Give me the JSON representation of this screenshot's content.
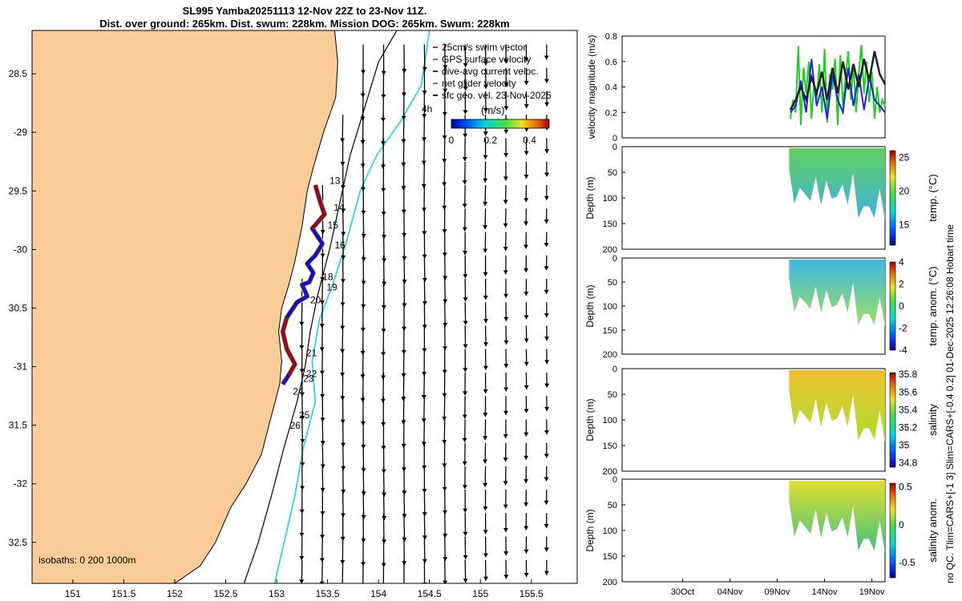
{
  "title": {
    "line1": "SL995 Yamba20251113 12-Nov 22Z to 23-Nov 11Z.",
    "line2": "Dist. over ground: 265km. Dist. swum: 228km. Mission DOG: 265km. Swum: 228km"
  },
  "side_label": "no QC. Tlim=CARS+[-1 3] Slim=CARS+[-0.4 0.2] 01-Dec-2025 12:26:08 Hobart time",
  "colors": {
    "land": "#fbcb98",
    "track": "#1010d0",
    "isobath_cyan": "#30d8d8",
    "warm": "#c00000"
  },
  "chart_data": [
    {
      "name": "map",
      "type": "scatter",
      "xlim": [
        150.6,
        155.95
      ],
      "ylim": [
        -32.85,
        -28.13
      ],
      "xticks": [
        151,
        151.5,
        152,
        152.5,
        153,
        153.5,
        154,
        154.5,
        155,
        155.5
      ],
      "xtick_labels": [
        "151",
        "151.5",
        "152",
        "152.5",
        "153",
        "153.5",
        "154",
        "154.5",
        "155",
        "155.5"
      ],
      "yticks": [
        -28.5,
        -29,
        -29.5,
        -30,
        -30.5,
        -31,
        -31.5,
        -32,
        -32.5
      ],
      "ytick_labels": [
        "28.5",
        "-29",
        "29.5",
        "-30",
        "30.5",
        "-31",
        "31.5",
        "-32",
        "32.5"
      ],
      "coastline": [
        [
          153.57,
          -28.13
        ],
        [
          153.6,
          -28.4
        ],
        [
          153.58,
          -28.7
        ],
        [
          153.46,
          -29.0
        ],
        [
          153.36,
          -29.3
        ],
        [
          153.3,
          -29.5
        ],
        [
          153.25,
          -29.8
        ],
        [
          153.18,
          -30.1
        ],
        [
          153.12,
          -30.3
        ],
        [
          153.05,
          -30.5
        ],
        [
          153.02,
          -30.7
        ],
        [
          153.05,
          -30.95
        ],
        [
          153.03,
          -31.15
        ],
        [
          152.94,
          -31.45
        ],
        [
          152.85,
          -31.75
        ],
        [
          152.7,
          -32.0
        ],
        [
          152.55,
          -32.2
        ],
        [
          152.4,
          -32.5
        ],
        [
          152.25,
          -32.7
        ],
        [
          152.0,
          -32.85
        ]
      ],
      "isobath_200": [
        [
          154.18,
          -28.13
        ],
        [
          154.0,
          -28.4
        ],
        [
          153.86,
          -28.8
        ],
        [
          153.72,
          -29.2
        ],
        [
          153.62,
          -29.6
        ],
        [
          153.52,
          -30.0
        ],
        [
          153.4,
          -30.4
        ],
        [
          153.33,
          -30.7
        ],
        [
          153.28,
          -31.0
        ],
        [
          153.2,
          -31.3
        ],
        [
          153.07,
          -31.7
        ],
        [
          152.95,
          -32.1
        ],
        [
          152.82,
          -32.5
        ],
        [
          152.68,
          -32.85
        ]
      ],
      "isobath_1000": [
        [
          154.5,
          -28.13
        ],
        [
          154.42,
          -28.6
        ],
        [
          154.22,
          -28.9
        ],
        [
          153.98,
          -29.2
        ],
        [
          153.82,
          -29.5
        ],
        [
          153.68,
          -29.95
        ],
        [
          153.55,
          -30.3
        ],
        [
          153.42,
          -30.6
        ],
        [
          153.35,
          -30.95
        ],
        [
          153.38,
          -31.3
        ],
        [
          153.26,
          -31.7
        ],
        [
          153.18,
          -32.1
        ],
        [
          153.1,
          -32.4
        ],
        [
          152.98,
          -32.85
        ]
      ],
      "track": [
        [
          153.38,
          -29.45
        ],
        [
          153.43,
          -29.6
        ],
        [
          153.47,
          -29.7
        ],
        [
          153.35,
          -29.82
        ],
        [
          153.45,
          -29.95
        ],
        [
          153.38,
          -30.05
        ],
        [
          153.3,
          -30.12
        ],
        [
          153.36,
          -30.2
        ],
        [
          153.32,
          -30.28
        ],
        [
          153.25,
          -30.3
        ],
        [
          153.3,
          -30.4
        ],
        [
          153.2,
          -30.45
        ],
        [
          153.1,
          -30.58
        ],
        [
          153.06,
          -30.7
        ],
        [
          153.1,
          -30.85
        ],
        [
          153.18,
          -30.98
        ],
        [
          153.12,
          -31.07
        ],
        [
          153.06,
          -31.15
        ]
      ],
      "track_labels": [
        {
          "text": "13",
          "lon": 153.52,
          "lat": -29.44
        },
        {
          "text": "14",
          "lon": 153.56,
          "lat": -29.67
        },
        {
          "text": "15",
          "lon": 153.5,
          "lat": -29.82
        },
        {
          "text": "16",
          "lon": 153.57,
          "lat": -29.99
        },
        {
          "text": "18",
          "lon": 153.45,
          "lat": -30.26
        },
        {
          "text": "19",
          "lon": 153.49,
          "lat": -30.35
        },
        {
          "text": "20",
          "lon": 153.33,
          "lat": -30.46
        },
        {
          "text": "21",
          "lon": 153.29,
          "lat": -30.91
        },
        {
          "text": "22",
          "lon": 153.29,
          "lat": -31.09
        },
        {
          "text": "23",
          "lon": 153.26,
          "lat": -31.13
        },
        {
          "text": "24",
          "lon": 153.16,
          "lat": -31.24
        },
        {
          "text": "25",
          "lon": 153.22,
          "lat": -31.44
        },
        {
          "text": "26",
          "lon": 153.13,
          "lat": -31.53
        }
      ],
      "legend": [
        {
          "label": "25cm/s swim vector",
          "color": "#e02020"
        },
        {
          "label": "GPS surface velocity",
          "color": "#e040e0"
        },
        {
          "label": "dive-avg current veloc.",
          "color": "#2020e0"
        },
        {
          "label": "net glider velocity",
          "color": "#20d020"
        },
        {
          "label": "sfc geo. vel. 23-Nov-2025",
          "color": "#000000"
        }
      ],
      "colorbar": {
        "title": "(m/s)",
        "ticks": [
          "0",
          "0.2",
          "0.4"
        ],
        "range": [
          0,
          0.5
        ]
      },
      "time_label": "4h",
      "isobath_text": "isobaths: 0   200  1000m"
    },
    {
      "name": "velocity",
      "type": "line",
      "ylabel": "velocity magnitude (m/s)",
      "ylim": [
        0,
        0.8
      ],
      "yticks": [
        "0",
        "0.2",
        "0.4",
        "0.6",
        "0.8"
      ],
      "xlim": [
        0,
        1
      ],
      "series": [
        {
          "name": "green",
          "color": "#20d020",
          "x": [
            0.64,
            0.65,
            0.66,
            0.67,
            0.68,
            0.69,
            0.7,
            0.71,
            0.72,
            0.73,
            0.74,
            0.75,
            0.76,
            0.77,
            0.78,
            0.79,
            0.8,
            0.81,
            0.82,
            0.83,
            0.84,
            0.85,
            0.86,
            0.87,
            0.88,
            0.89,
            0.9,
            0.91,
            0.92,
            0.93,
            0.94,
            0.95,
            0.96,
            0.97,
            0.98,
            0.99,
            1.0
          ],
          "y": [
            0.15,
            0.3,
            0.2,
            0.72,
            0.1,
            0.55,
            0.35,
            0.6,
            0.15,
            0.42,
            0.3,
            0.58,
            0.2,
            0.7,
            0.12,
            0.5,
            0.38,
            0.62,
            0.1,
            0.65,
            0.25,
            0.48,
            0.68,
            0.3,
            0.58,
            0.2,
            0.5,
            0.73,
            0.35,
            0.6,
            0.28,
            0.52,
            0.15,
            0.4,
            0.2,
            0.3,
            0.25
          ]
        },
        {
          "name": "blue",
          "color": "#2020e0",
          "x": [
            0.64,
            0.66,
            0.68,
            0.7,
            0.72,
            0.74,
            0.76,
            0.78,
            0.8,
            0.82,
            0.84,
            0.86,
            0.88,
            0.9,
            0.92,
            0.94,
            0.96,
            0.98,
            1.0
          ],
          "y": [
            0.2,
            0.25,
            0.45,
            0.2,
            0.62,
            0.25,
            0.4,
            0.15,
            0.5,
            0.3,
            0.2,
            0.55,
            0.25,
            0.5,
            0.22,
            0.48,
            0.3,
            0.25,
            0.2
          ]
        },
        {
          "name": "black",
          "color": "#222222",
          "x": [
            0.64,
            0.66,
            0.68,
            0.7,
            0.72,
            0.74,
            0.76,
            0.78,
            0.8,
            0.82,
            0.84,
            0.86,
            0.88,
            0.9,
            0.92,
            0.94,
            0.96,
            0.98,
            1.0
          ],
          "y": [
            0.22,
            0.3,
            0.4,
            0.3,
            0.48,
            0.35,
            0.52,
            0.3,
            0.55,
            0.35,
            0.6,
            0.38,
            0.58,
            0.4,
            0.62,
            0.45,
            0.68,
            0.5,
            0.42
          ]
        }
      ]
    },
    {
      "name": "temperature",
      "type": "heatmap",
      "ylabel": "Depth (m)",
      "ylim": [
        0,
        200
      ],
      "yticks": [
        "0",
        "50",
        "100",
        "150",
        "200"
      ],
      "cbar_label": "temp. (°C)",
      "cbar_ticks": [
        "25",
        "20",
        "15"
      ],
      "cbar_range": [
        12,
        26
      ],
      "cbar_tick_values": [
        25,
        20,
        15
      ],
      "color_top": "#60d060",
      "color_bottom": "#40b0e0"
    },
    {
      "name": "temperature anomaly",
      "type": "heatmap",
      "ylabel": "Depth (m)",
      "ylim": [
        0,
        200
      ],
      "yticks": [
        "0",
        "50",
        "100",
        "150",
        "200"
      ],
      "cbar_label": "temp. anom. (°C)",
      "cbar_ticks": [
        "4",
        "2",
        "0",
        "-2",
        "-4"
      ],
      "cbar_range": [
        -4,
        4
      ],
      "cbar_tick_values": [
        4,
        2,
        0,
        -2,
        -4
      ],
      "color_top": "#40b8e0",
      "color_bottom": "#a0e060"
    },
    {
      "name": "salinity",
      "type": "heatmap",
      "ylabel": "Depth (m)",
      "ylim": [
        0,
        200
      ],
      "yticks": [
        "0",
        "50",
        "100",
        "150",
        "200"
      ],
      "cbar_label": "salinity",
      "cbar_ticks": [
        "35.8",
        "35.6",
        "35.4",
        "35.2",
        "35",
        "34.8"
      ],
      "cbar_range": [
        34.75,
        35.82
      ],
      "cbar_tick_values": [
        35.8,
        35.6,
        35.4,
        35.2,
        35,
        34.8
      ],
      "color_top": "#f0c030",
      "color_bottom": "#a8e030"
    },
    {
      "name": "salinity anomaly",
      "type": "heatmap",
      "ylabel": "Depth (m)",
      "ylim": [
        0,
        200
      ],
      "yticks": [
        "0",
        "50",
        "100",
        "150",
        "200"
      ],
      "cbar_label": "salinity anom.",
      "cbar_ticks": [
        "0.5",
        "0",
        "-0.5"
      ],
      "cbar_range": [
        -0.7,
        0.55
      ],
      "cbar_tick_values": [
        0.5,
        0,
        -0.5
      ],
      "color_top": "#e0e030",
      "color_bottom": "#40c080",
      "xtick_labels": [
        "30Oct",
        "04Nov",
        "09Nov",
        "14Nov",
        "19Nov"
      ],
      "xtick_positions": [
        0.23,
        0.41,
        0.59,
        0.77,
        0.95
      ]
    }
  ]
}
